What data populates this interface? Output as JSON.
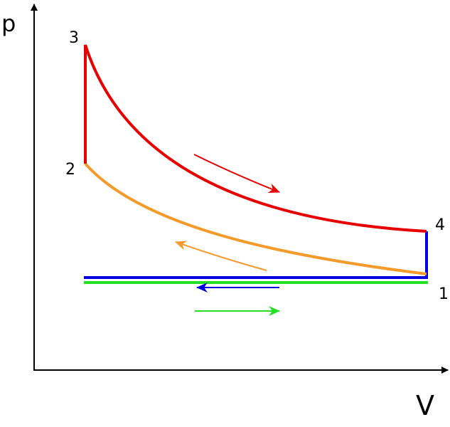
{
  "axes": {
    "y_label": "p",
    "x_label": "V"
  },
  "points": [
    {
      "label": "1"
    },
    {
      "label": "2"
    },
    {
      "label": "3"
    },
    {
      "label": "4"
    }
  ]
}
